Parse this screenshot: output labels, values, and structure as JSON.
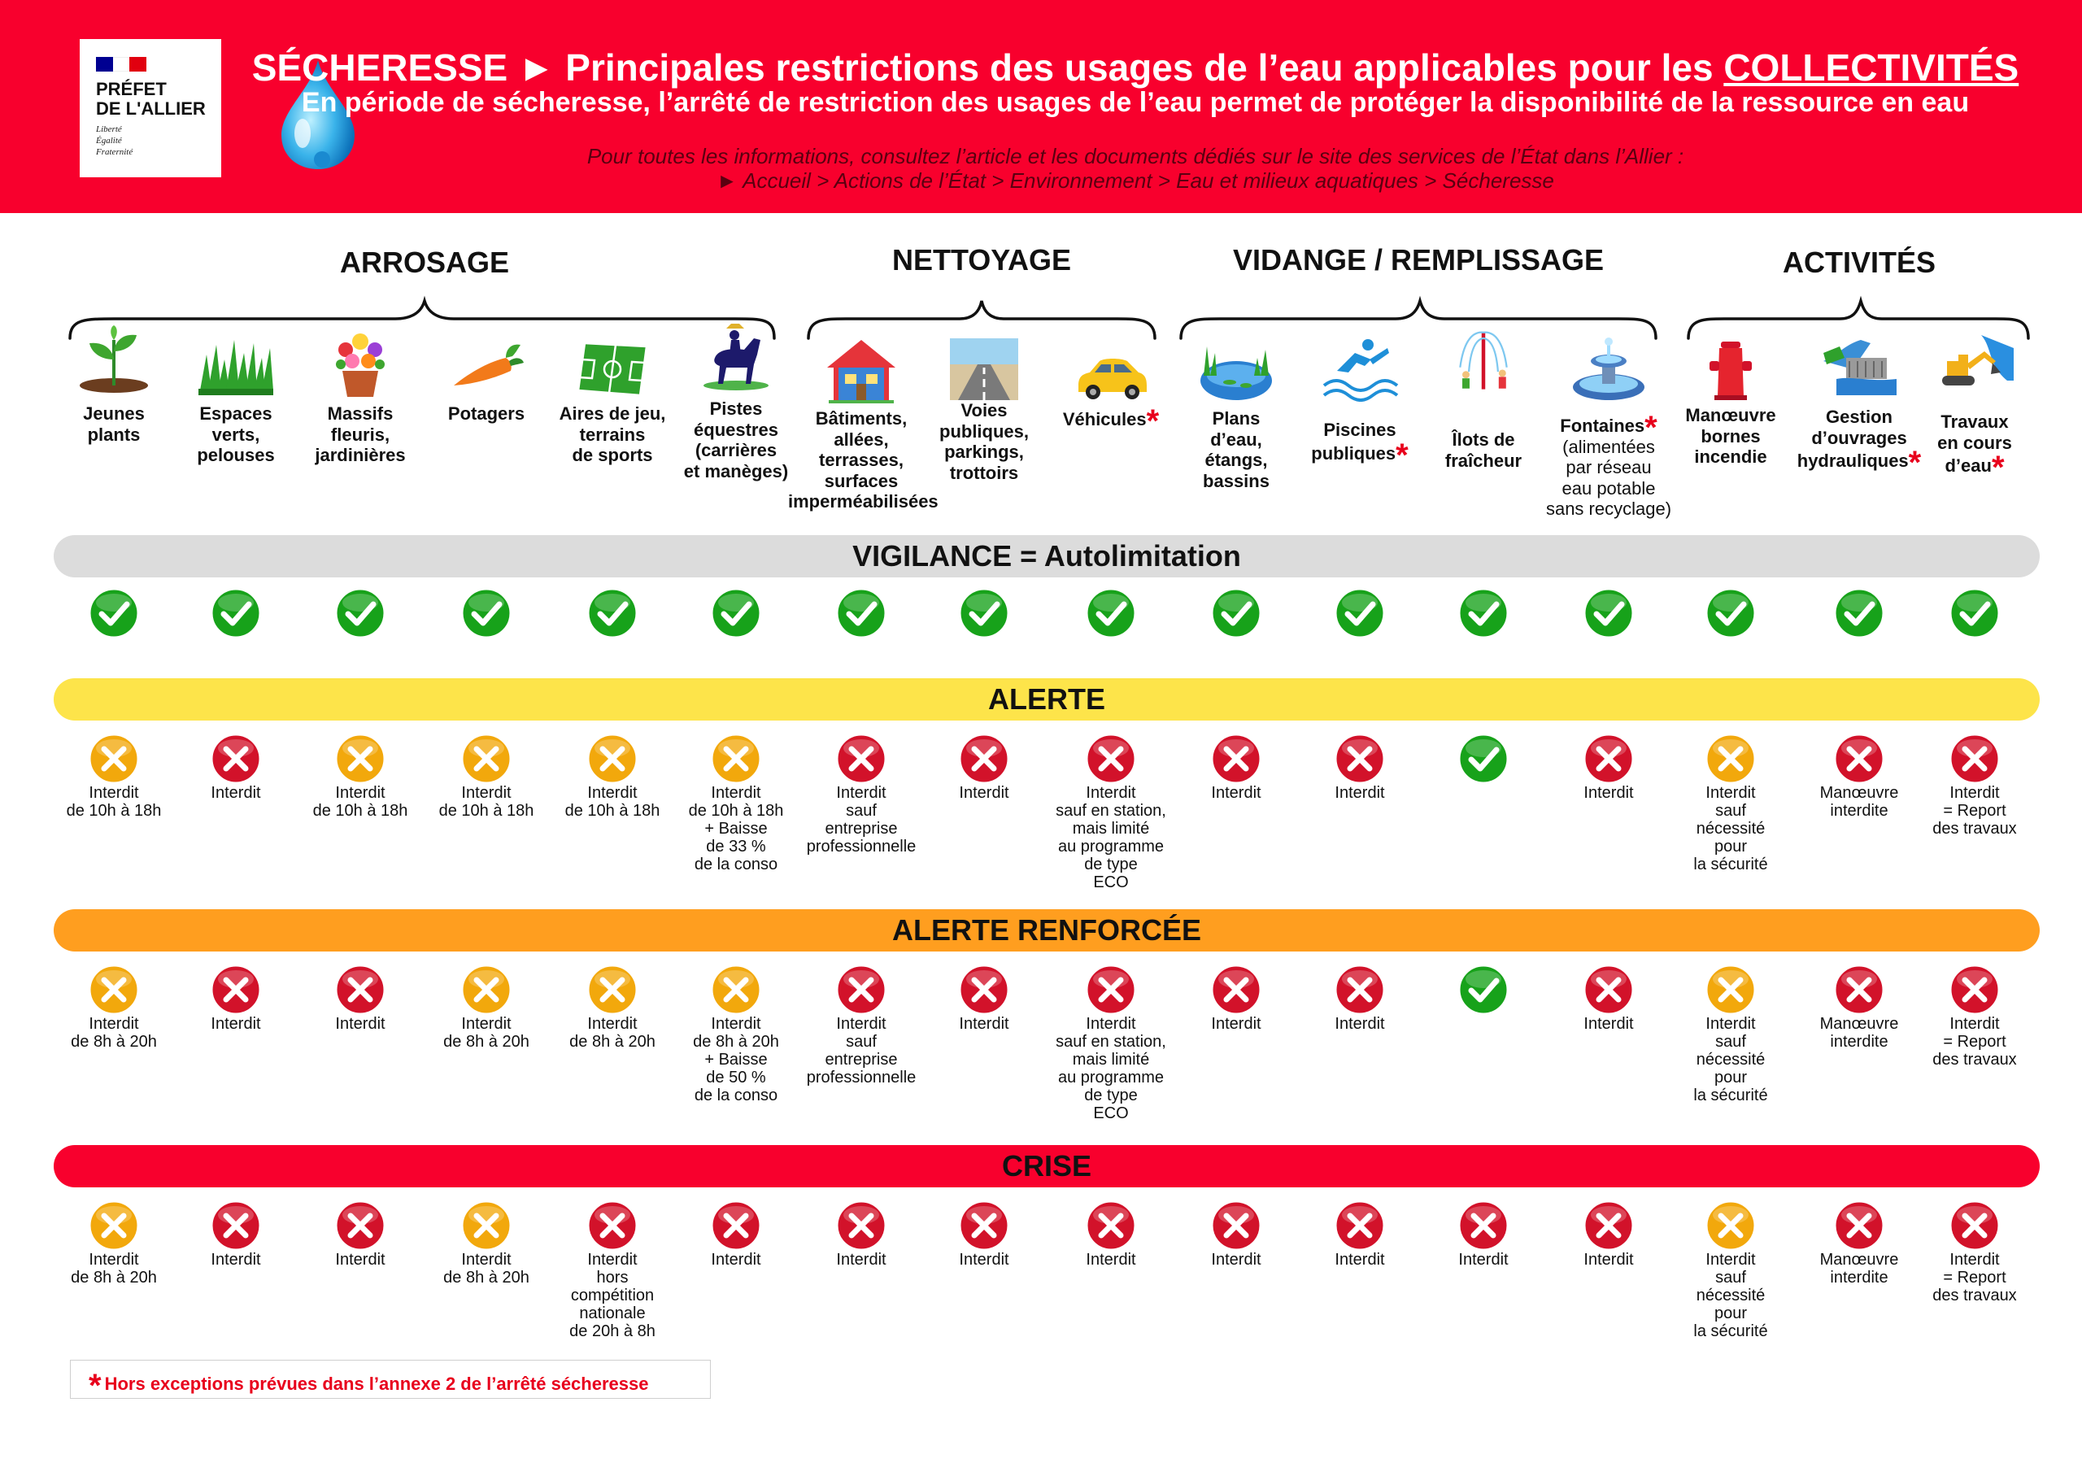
{
  "header": {
    "logo": {
      "line1": "PRÉFET",
      "line2": "DE L'ALLIER",
      "motto": [
        "Liberté",
        "Égalité",
        "Fraternité"
      ],
      "flag_colors": [
        "#000091",
        "#ffffff",
        "#e1000f"
      ]
    },
    "title_part1": "SÉCHERESSE ► Principales restrictions des usages de l’eau applicables pour les ",
    "title_part2": "COLLECTIVITÉS",
    "subtitle": "En période de sécheresse, l’arrêté de restriction des usages de l’eau permet de protéger la disponibilité de la ressource en eau",
    "info_line1": "Pour toutes les informations, consultez l’article et les documents dédiés sur le site des services de l’État dans l’Allier :",
    "info_line2": "► Accueil > Actions de l’État > Environnement > Eau et milieux aquatiques > Sécheresse"
  },
  "colors": {
    "banner": "#f8002d",
    "vigilance": "#dcdcdc",
    "alerte": "#fde44a",
    "alerte_renforcee": "#ff9e1f",
    "crise": "#f8002d",
    "ok": "#17a21a",
    "forbidden": "#d2122a",
    "restricted": "#f2a80c"
  },
  "categories": [
    "ARROSAGE",
    "NETTOYAGE",
    "VIDANGE / REMPLISSAGE",
    "ACTIVITÉS"
  ],
  "usages": [
    {
      "icon": "seedling-icon",
      "lines": [
        "Jeunes",
        "plants"
      ],
      "star": false
    },
    {
      "icon": "grass-icon",
      "lines": [
        "Espaces",
        "verts,",
        "pelouses"
      ],
      "star": false
    },
    {
      "icon": "flower-pot-icon",
      "lines": [
        "Massifs",
        "fleuris,",
        "jardinières"
      ],
      "star": false
    },
    {
      "icon": "carrot-icon",
      "lines": [
        "Potagers"
      ],
      "star": false
    },
    {
      "icon": "football-field-icon",
      "lines": [
        "Aires de jeu,",
        "terrains",
        "de sports"
      ],
      "star": false
    },
    {
      "icon": "horse-rider-icon",
      "lines": [
        "Pistes",
        "équestres",
        "(carrières",
        "et manèges)"
      ],
      "star": false
    },
    {
      "icon": "house-icon",
      "lines": [
        "Bâtiments,",
        "allées,",
        "terrasses,",
        "surfaces",
        "imperméabilisées"
      ],
      "star": false
    },
    {
      "icon": "road-icon",
      "lines": [
        "Voies",
        "publiques,",
        "parkings,",
        "trottoirs"
      ],
      "star": false
    },
    {
      "icon": "car-icon",
      "lines": [
        "Véhicules"
      ],
      "star": true
    },
    {
      "icon": "pond-icon",
      "lines": [
        "Plans",
        "d’eau,",
        "étangs,",
        "bassins"
      ],
      "star": false
    },
    {
      "icon": "swimmer-icon",
      "lines": [
        "Piscines",
        "publiques"
      ],
      "star": true
    },
    {
      "icon": "water-sprinkler-icon",
      "lines": [
        "Îlots de",
        "fraîcheur"
      ],
      "star": false
    },
    {
      "icon": "fountain-icon",
      "lines": [
        "Fontaines",
        "(alimentées",
        "par réseau",
        "eau potable",
        "sans recyclage)"
      ],
      "star": true,
      "bold_lines": 1
    },
    {
      "icon": "fire-hydrant-icon",
      "lines": [
        "Manœuvre",
        "bornes",
        "incendie"
      ],
      "star": false
    },
    {
      "icon": "dam-icon",
      "lines": [
        "Gestion",
        "d’ouvrages",
        "hydrauliques"
      ],
      "star": true
    },
    {
      "icon": "excavator-icon",
      "lines": [
        "Travaux",
        "en cours",
        "d’eau"
      ],
      "star": true
    }
  ],
  "levels": [
    {
      "name": "VIGILANCE  =  Autolimitation",
      "statuses": [
        "ok",
        "ok",
        "ok",
        "ok",
        "ok",
        "ok",
        "ok",
        "ok",
        "ok",
        "ok",
        "ok",
        "ok",
        "ok",
        "ok",
        "ok",
        "ok"
      ],
      "labels": [
        [],
        [],
        [],
        [],
        [],
        [],
        [],
        [],
        [],
        [],
        [],
        [],
        [],
        [],
        [],
        []
      ]
    },
    {
      "name": "ALERTE",
      "statuses": [
        "restricted",
        "forbidden",
        "restricted",
        "restricted",
        "restricted",
        "restricted",
        "forbidden",
        "forbidden",
        "forbidden",
        "forbidden",
        "forbidden",
        "ok",
        "forbidden",
        "restricted",
        "forbidden",
        "forbidden"
      ],
      "labels": [
        [
          "Interdit",
          "de 10h à 18h"
        ],
        [
          "Interdit"
        ],
        [
          "Interdit",
          "de 10h à 18h"
        ],
        [
          "Interdit",
          "de 10h à 18h"
        ],
        [
          "Interdit",
          "de 10h à 18h"
        ],
        [
          "Interdit",
          "de 10h à 18h",
          "+ Baisse",
          "de 33 %",
          "de la conso"
        ],
        [
          "Interdit",
          "sauf",
          "entreprise",
          "professionnelle"
        ],
        [
          "Interdit"
        ],
        [
          "Interdit",
          "sauf en station,",
          "mais limité",
          "au programme",
          "de type",
          "ECO"
        ],
        [
          "Interdit"
        ],
        [
          "Interdit"
        ],
        [],
        [
          "Interdit"
        ],
        [
          "Interdit",
          "sauf",
          "nécessité",
          "pour",
          "la sécurité"
        ],
        [
          "Manœuvre",
          "interdite"
        ],
        [
          "Interdit",
          "= Report",
          "des travaux"
        ]
      ]
    },
    {
      "name": "ALERTE RENFORCÉE",
      "statuses": [
        "restricted",
        "forbidden",
        "forbidden",
        "restricted",
        "restricted",
        "restricted",
        "forbidden",
        "forbidden",
        "forbidden",
        "forbidden",
        "forbidden",
        "ok",
        "forbidden",
        "restricted",
        "forbidden",
        "forbidden"
      ],
      "labels": [
        [
          "Interdit",
          "de 8h à 20h"
        ],
        [
          "Interdit"
        ],
        [
          "Interdit"
        ],
        [
          "Interdit",
          "de 8h à 20h"
        ],
        [
          "Interdit",
          "de 8h à 20h"
        ],
        [
          "Interdit",
          "de 8h à 20h",
          "+ Baisse",
          "de 50 %",
          "de la conso"
        ],
        [
          "Interdit",
          "sauf",
          "entreprise",
          "professionnelle"
        ],
        [
          "Interdit"
        ],
        [
          "Interdit",
          "sauf en station,",
          "mais limité",
          "au programme",
          "de type",
          "ECO"
        ],
        [
          "Interdit"
        ],
        [
          "Interdit"
        ],
        [],
        [
          "Interdit"
        ],
        [
          "Interdit",
          "sauf",
          "nécessité",
          "pour",
          "la sécurité"
        ],
        [
          "Manœuvre",
          "interdite"
        ],
        [
          "Interdit",
          "= Report",
          "des travaux"
        ]
      ]
    },
    {
      "name": "CRISE",
      "statuses": [
        "restricted",
        "forbidden",
        "forbidden",
        "restricted",
        "forbidden",
        "forbidden",
        "forbidden",
        "forbidden",
        "forbidden",
        "forbidden",
        "forbidden",
        "forbidden",
        "forbidden",
        "restricted",
        "forbidden",
        "forbidden"
      ],
      "labels": [
        [
          "Interdit",
          "de 8h à 20h"
        ],
        [
          "Interdit"
        ],
        [
          "Interdit"
        ],
        [
          "Interdit",
          "de 8h à 20h"
        ],
        [
          "Interdit",
          "hors",
          "compétition",
          "nationale",
          "de 20h à 8h"
        ],
        [
          "Interdit"
        ],
        [
          "Interdit"
        ],
        [
          "Interdit"
        ],
        [
          "Interdit"
        ],
        [
          "Interdit"
        ],
        [
          "Interdit"
        ],
        [
          "Interdit"
        ],
        [
          "Interdit"
        ],
        [
          "Interdit",
          "sauf",
          "nécessité",
          "pour",
          "la sécurité"
        ],
        [
          "Manœuvre",
          "interdite"
        ],
        [
          "Interdit",
          "= Report",
          "des travaux"
        ]
      ]
    }
  ],
  "footnote": "Hors exceptions prévues dans l’annexe 2 de l’arrêté sécheresse"
}
